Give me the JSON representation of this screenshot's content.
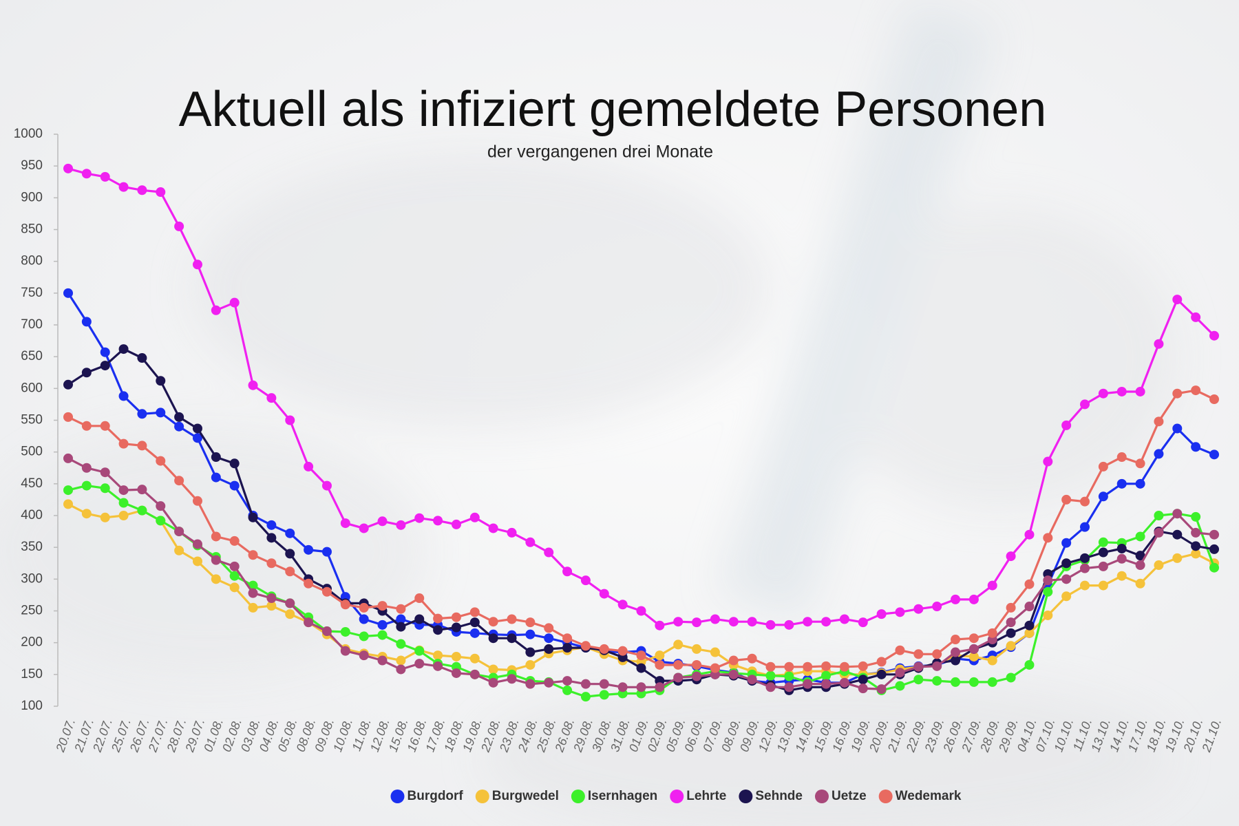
{
  "chart_data": {
    "type": "line",
    "title": "Aktuell als infiziert gemeldete Personen",
    "subtitle": "der vergangenen drei Monate",
    "categories": [
      "20.07.",
      "21.07.",
      "22.07.",
      "25.07.",
      "26.07.",
      "27.07.",
      "28.07.",
      "29.07.",
      "01.08.",
      "02.08.",
      "03.08.",
      "04.08.",
      "05.08.",
      "08.08.",
      "09.08.",
      "10.08.",
      "11.08.",
      "12.08.",
      "15.08.",
      "16.08.",
      "17.08.",
      "18.08.",
      "19.08.",
      "22.08.",
      "23.08.",
      "24.08.",
      "25.08.",
      "26.08.",
      "29.08.",
      "30.08.",
      "31.08.",
      "01.09.",
      "02.09.",
      "05.09.",
      "06.09.",
      "07.09.",
      "08.09.",
      "09.09.",
      "12.09.",
      "13.09.",
      "14.09.",
      "15.09.",
      "16.09.",
      "19.09.",
      "20.09.",
      "21.09.",
      "22.09.",
      "23.09.",
      "26.09.",
      "27.09.",
      "28.09.",
      "29.09.",
      "04.10.",
      "07.10.",
      "10.10.",
      "11.10.",
      "13.10.",
      "14.10.",
      "17.10.",
      "18.10.",
      "19.10.",
      "20.10.",
      "21.10."
    ],
    "series": [
      {
        "name": "Burgdorf",
        "color": "#1a2ff0",
        "values": [
          750,
          705,
          657,
          588,
          560,
          562,
          540,
          522,
          460,
          447,
          400,
          385,
          372,
          346,
          343,
          272,
          237,
          228,
          237,
          228,
          228,
          217,
          215,
          213,
          212,
          213,
          207,
          200,
          192,
          186,
          185,
          187,
          170,
          167,
          163,
          157,
          153,
          140,
          137,
          140,
          142,
          137,
          137,
          150,
          153,
          160,
          163,
          165,
          175,
          172,
          180,
          193,
          215,
          290,
          357,
          382,
          430,
          450,
          450,
          497,
          537,
          508,
          496
        ]
      },
      {
        "name": "Burgwedel",
        "color": "#f5c23a",
        "values": [
          418,
          403,
          397,
          400,
          408,
          392,
          345,
          328,
          300,
          287,
          255,
          258,
          245,
          232,
          213,
          190,
          183,
          178,
          172,
          188,
          180,
          178,
          175,
          158,
          157,
          165,
          183,
          188,
          193,
          182,
          172,
          170,
          180,
          197,
          190,
          185,
          165,
          155,
          148,
          150,
          155,
          155,
          150,
          150,
          152,
          158,
          162,
          165,
          180,
          178,
          172,
          195,
          215,
          243,
          273,
          290,
          290,
          305,
          293,
          322,
          333,
          340,
          325
        ]
      },
      {
        "name": "Isernhagen",
        "color": "#3cf02a",
        "values": [
          440,
          447,
          443,
          420,
          408,
          392,
          375,
          353,
          335,
          305,
          290,
          273,
          262,
          240,
          218,
          217,
          210,
          212,
          198,
          187,
          167,
          162,
          150,
          145,
          150,
          140,
          138,
          125,
          115,
          118,
          120,
          120,
          125,
          145,
          150,
          155,
          152,
          150,
          148,
          147,
          138,
          148,
          155,
          145,
          125,
          132,
          142,
          140,
          138,
          138,
          138,
          145,
          165,
          280,
          320,
          330,
          358,
          357,
          367,
          400,
          403,
          398,
          318
        ]
      },
      {
        "name": "Lehrte",
        "color": "#f020f0",
        "values": [
          946,
          938,
          933,
          917,
          912,
          909,
          855,
          795,
          723,
          735,
          605,
          585,
          550,
          477,
          447,
          388,
          380,
          391,
          385,
          396,
          392,
          386,
          397,
          380,
          373,
          358,
          342,
          312,
          298,
          277,
          260,
          250,
          227,
          233,
          232,
          237,
          233,
          233,
          228,
          228,
          233,
          233,
          237,
          232,
          245,
          248,
          253,
          257,
          268,
          268,
          290,
          336,
          370,
          485,
          542,
          575,
          592,
          595,
          595,
          670,
          740,
          712,
          683
        ]
      },
      {
        "name": "Sehnde",
        "color": "#1c1450",
        "values": [
          606,
          625,
          636,
          662,
          648,
          612,
          555,
          537,
          492,
          482,
          397,
          365,
          340,
          300,
          285,
          262,
          262,
          250,
          225,
          237,
          220,
          224,
          232,
          207,
          207,
          185,
          190,
          192,
          192,
          188,
          177,
          160,
          140,
          140,
          142,
          150,
          148,
          140,
          133,
          125,
          130,
          130,
          135,
          142,
          150,
          150,
          160,
          168,
          172,
          190,
          200,
          215,
          227,
          308,
          325,
          333,
          342,
          348,
          337,
          375,
          370,
          352,
          347
        ]
      },
      {
        "name": "Uetze",
        "color": "#a8487a",
        "values": [
          490,
          475,
          468,
          440,
          441,
          415,
          375,
          355,
          330,
          320,
          278,
          270,
          262,
          232,
          218,
          187,
          180,
          172,
          158,
          167,
          163,
          152,
          150,
          137,
          143,
          135,
          137,
          140,
          135,
          135,
          130,
          130,
          130,
          145,
          147,
          150,
          150,
          142,
          130,
          130,
          135,
          135,
          137,
          128,
          127,
          153,
          162,
          163,
          185,
          190,
          205,
          232,
          257,
          298,
          300,
          317,
          320,
          332,
          322,
          373,
          403,
          373,
          370
        ]
      },
      {
        "name": "Wedemark",
        "color": "#e86a60",
        "values": [
          555,
          541,
          541,
          513,
          510,
          486,
          455,
          423,
          367,
          360,
          338,
          325,
          312,
          293,
          280,
          260,
          255,
          258,
          253,
          270,
          238,
          240,
          248,
          233,
          237,
          232,
          223,
          207,
          195,
          190,
          187,
          180,
          165,
          165,
          165,
          160,
          172,
          175,
          162,
          162,
          162,
          163,
          162,
          163,
          170,
          188,
          182,
          182,
          205,
          207,
          215,
          255,
          292,
          365,
          425,
          422,
          477,
          492,
          482,
          548,
          592,
          597,
          583
        ]
      }
    ],
    "ylim": [
      100,
      1000
    ],
    "yticks": [
      100,
      150,
      200,
      250,
      300,
      350,
      400,
      450,
      500,
      550,
      600,
      650,
      700,
      750,
      800,
      850,
      900,
      950,
      1000
    ],
    "grid": false,
    "legend": "bottom"
  }
}
